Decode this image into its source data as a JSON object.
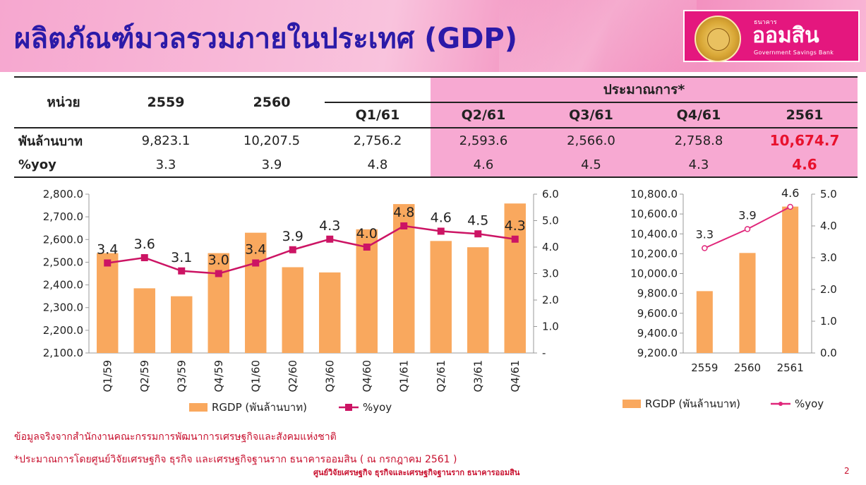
{
  "title": "ผลิตภัณฑ์มวลรวมภายในประเทศ (GDP)",
  "logo": {
    "small_text": "ธนาคาร",
    "main_text": "ออมสิน",
    "sub_text": "Government Savings Bank"
  },
  "table": {
    "unit_label": "หน่วย",
    "col_2559": "2559",
    "col_2560": "2560",
    "estimate_label": "ประมาณการ*",
    "col_q1": "Q1/61",
    "col_q2": "Q2/61",
    "col_q3": "Q3/61",
    "col_q4": "Q4/61",
    "col_2561": "2561",
    "row1": {
      "label": "พันล้านบาท",
      "v2559": "9,823.1",
      "v2560": "10,207.5",
      "q1": "2,756.2",
      "q2": "2,593.6",
      "q3": "2,566.0",
      "q4": "2,758.8",
      "v2561": "10,674.7"
    },
    "row2": {
      "label": "%yoy",
      "v2559": "3.3",
      "v2560": "3.9",
      "q1": "4.8",
      "q2": "4.6",
      "q3": "4.5",
      "q4": "4.3",
      "v2561": "4.6"
    }
  },
  "colors": {
    "bar": "#f9a85e",
    "line": "#cc1464",
    "line2": "#e0267a",
    "estimate_bg": "#f7a9d2",
    "title": "#2b1aa8",
    "highlight": "#e8112d"
  },
  "chart_data": [
    {
      "type": "bar",
      "categories": [
        "Q1/59",
        "Q2/59",
        "Q3/59",
        "Q4/59",
        "Q1/60",
        "Q2/60",
        "Q3/60",
        "Q4/60",
        "Q1/61",
        "Q2/61",
        "Q3/61",
        "Q4/61"
      ],
      "series": [
        {
          "name": "RGDP (พันล้านบาท)",
          "kind": "bar",
          "axis": "left",
          "values": [
            2540,
            2385,
            2350,
            2540,
            2630,
            2478,
            2455,
            2645,
            2756.2,
            2593.6,
            2566.0,
            2758.8
          ]
        },
        {
          "name": "%yoy",
          "kind": "line",
          "axis": "right",
          "values": [
            3.4,
            3.6,
            3.1,
            3.0,
            3.4,
            3.9,
            4.3,
            4.0,
            4.8,
            4.6,
            4.5,
            4.3
          ],
          "labels": [
            "3.4",
            "3.6",
            "3.1",
            "3.0",
            "3.4",
            "3.9",
            "4.3",
            "4.0",
            "4.8",
            "4.6",
            "4.5",
            "4.3"
          ]
        }
      ],
      "ylim_left": [
        2100,
        2800
      ],
      "yticks_left": [
        "2,100.0",
        "2,200.0",
        "2,300.0",
        "2,400.0",
        "2,500.0",
        "2,600.0",
        "2,700.0",
        "2,800.0"
      ],
      "ylim_right": [
        0,
        6
      ],
      "yticks_right": [
        "-",
        "1.0",
        "2.0",
        "3.0",
        "4.0",
        "5.0",
        "6.0"
      ],
      "legend": [
        "RGDP (พันล้านบาท)",
        "%yoy"
      ],
      "legend_position": "bottom"
    },
    {
      "type": "bar",
      "categories": [
        "2559",
        "2560",
        "2561"
      ],
      "series": [
        {
          "name": "RGDP (พันล้านบาท)",
          "kind": "bar",
          "axis": "left",
          "values": [
            9823.1,
            10207.5,
            10674.7
          ]
        },
        {
          "name": "%yoy",
          "kind": "line",
          "axis": "right",
          "values": [
            3.3,
            3.9,
            4.6
          ],
          "labels": [
            "3.3",
            "3.9",
            "4.6"
          ]
        }
      ],
      "ylim_left": [
        9200,
        10800
      ],
      "yticks_left": [
        "9,200.0",
        "9,400.0",
        "9,600.0",
        "9,800.0",
        "10,000.0",
        "10,200.0",
        "10,400.0",
        "10,600.0",
        "10,800.0"
      ],
      "ylim_right": [
        0,
        5
      ],
      "yticks_right": [
        "0.0",
        "1.0",
        "2.0",
        "3.0",
        "4.0",
        "5.0"
      ],
      "legend": [
        "RGDP (พันล้านบาท)",
        "%yoy"
      ],
      "legend_position": "bottom"
    }
  ],
  "notes": {
    "source": "ข้อมูลจริงจากสำนักงานคณะกรรมการพัฒนาการเศรษฐกิจและสังคมแห่งชาติ",
    "estimate": "*ประมาณการโดยศูนย์วิจัยเศรษฐกิจ ธุรกิจ และเศรษฐกิจฐานราก ธนาคารออมสิน ( ณ กรกฎาคม 2561 )"
  },
  "footer": "ศูนย์วิจัยเศรษฐกิจ ธุรกิจและเศรษฐกิจฐานราก ธนาคารออมสิน",
  "page_number": "2"
}
